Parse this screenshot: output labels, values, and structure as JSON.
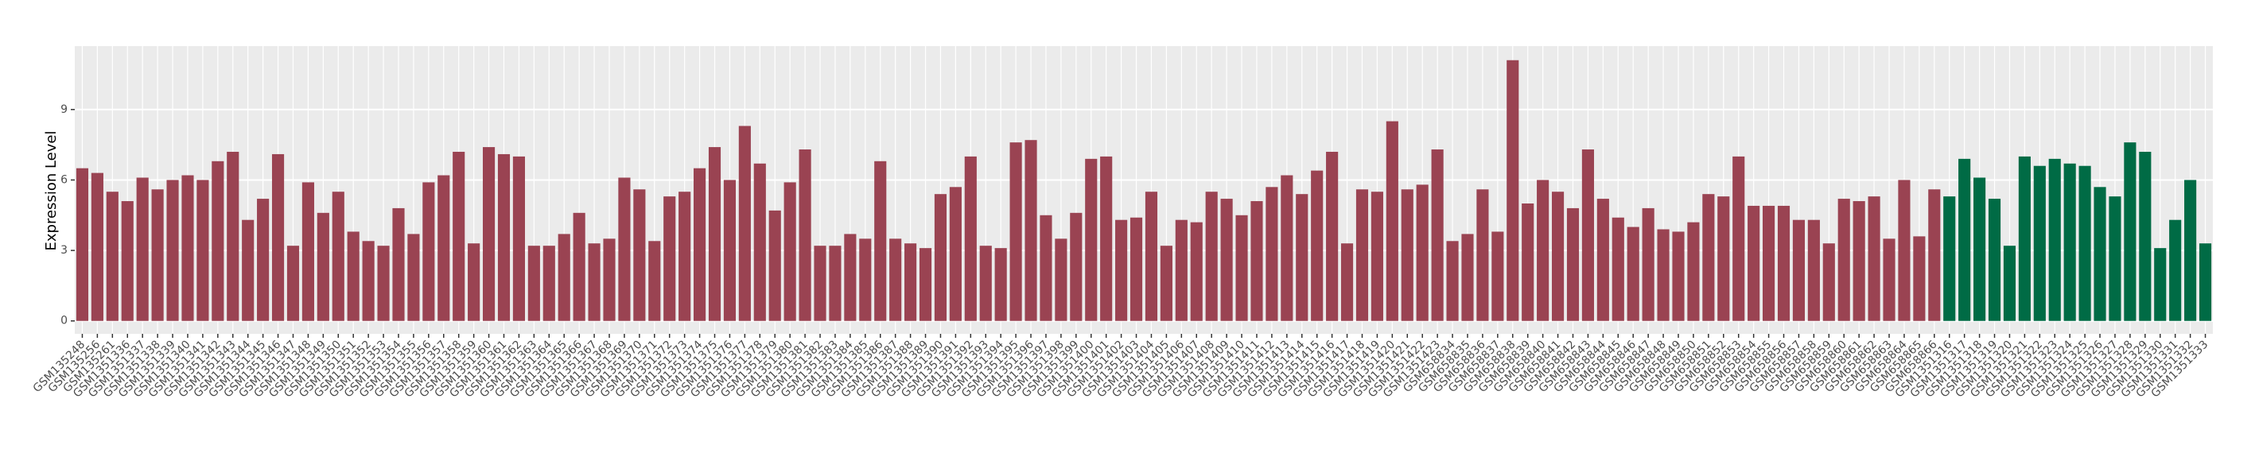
{
  "chart_data": {
    "type": "bar",
    "y_label": "Expression Level",
    "categories": [
      "GSM135248",
      "GSM135256",
      "GSM135261",
      "GSM1351336",
      "GSM1351337",
      "GSM1351338",
      "GSM1351339",
      "GSM1351340",
      "GSM1351341",
      "GSM1351342",
      "GSM1351343",
      "GSM1351344",
      "GSM1351345",
      "GSM1351346",
      "GSM1351347",
      "GSM1351348",
      "GSM1351349",
      "GSM1351350",
      "GSM1351351",
      "GSM1351352",
      "GSM1351353",
      "GSM1351354",
      "GSM1351355",
      "GSM1351356",
      "GSM1351357",
      "GSM1351358",
      "GSM1351359",
      "GSM1351360",
      "GSM1351361",
      "GSM1351362",
      "GSM1351363",
      "GSM1351364",
      "GSM1351365",
      "GSM1351366",
      "GSM1351367",
      "GSM1351368",
      "GSM1351369",
      "GSM1351370",
      "GSM1351371",
      "GSM1351372",
      "GSM1351373",
      "GSM1351374",
      "GSM1351375",
      "GSM1351376",
      "GSM1351377",
      "GSM1351378",
      "GSM1351379",
      "GSM1351380",
      "GSM1351381",
      "GSM1351382",
      "GSM1351383",
      "GSM1351384",
      "GSM1351385",
      "GSM1351386",
      "GSM1351387",
      "GSM1351388",
      "GSM1351389",
      "GSM1351390",
      "GSM1351391",
      "GSM1351392",
      "GSM1351393",
      "GSM1351394",
      "GSM1351395",
      "GSM1351396",
      "GSM1351397",
      "GSM1351398",
      "GSM1351399",
      "GSM1351400",
      "GSM1351401",
      "GSM1351402",
      "GSM1351403",
      "GSM1351404",
      "GSM1351405",
      "GSM1351406",
      "GSM1351407",
      "GSM1351408",
      "GSM1351409",
      "GSM1351410",
      "GSM1351411",
      "GSM1351412",
      "GSM1351413",
      "GSM1351414",
      "GSM1351415",
      "GSM1351416",
      "GSM1351417",
      "GSM1351418",
      "GSM1351419",
      "GSM1351420",
      "GSM1351421",
      "GSM1351422",
      "GSM1351423",
      "GSM658834",
      "GSM658835",
      "GSM658836",
      "GSM658837",
      "GSM658838",
      "GSM658839",
      "GSM658840",
      "GSM658841",
      "GSM658842",
      "GSM658843",
      "GSM658844",
      "GSM658845",
      "GSM658846",
      "GSM658847",
      "GSM658848",
      "GSM658849",
      "GSM658850",
      "GSM658851",
      "GSM658852",
      "GSM658853",
      "GSM658854",
      "GSM658855",
      "GSM658856",
      "GSM658857",
      "GSM658858",
      "GSM658859",
      "GSM658860",
      "GSM658861",
      "GSM658862",
      "GSM658863",
      "GSM658864",
      "GSM658865",
      "GSM658866",
      "GSM1351316",
      "GSM1351317",
      "GSM1351318",
      "GSM1351319",
      "GSM1351320",
      "GSM1351321",
      "GSM1351322",
      "GSM1351323",
      "GSM1351324",
      "GSM1351325",
      "GSM1351326",
      "GSM1351327",
      "GSM1351328",
      "GSM1351329",
      "GSM1351330",
      "GSM1351331",
      "GSM1351332",
      "GSM1351333"
    ],
    "series": [
      {
        "color": "#9a4352",
        "values": [
          6.5,
          6.3,
          5.5,
          5.1,
          6.1,
          5.6,
          6.0,
          6.2,
          6.0,
          6.8,
          7.2,
          4.3,
          5.2,
          7.1,
          3.2,
          5.9,
          4.6,
          5.5,
          3.8,
          3.4,
          3.2,
          4.8,
          3.7,
          5.9,
          6.2,
          7.2,
          3.3,
          7.4,
          7.1,
          7.0,
          3.2,
          3.2,
          3.7,
          4.6,
          3.3,
          3.5,
          6.1,
          5.6,
          3.4,
          5.3,
          5.5,
          6.5,
          7.4,
          6.0,
          8.3,
          6.7,
          4.7,
          5.9,
          7.3,
          3.2,
          3.2,
          3.7,
          3.5,
          6.8,
          3.5,
          3.3,
          3.1,
          5.4,
          5.7,
          7.0,
          3.2,
          3.1,
          7.6,
          7.7,
          4.5,
          3.5,
          4.6,
          6.9,
          7.0,
          4.3,
          4.4,
          5.5,
          3.2,
          4.3,
          4.2,
          5.5,
          5.2,
          4.5,
          5.1,
          5.7,
          6.2,
          5.4,
          6.4,
          7.2,
          3.3,
          5.6,
          5.5,
          8.5,
          5.6,
          5.8,
          7.3,
          3.4,
          3.7,
          5.6,
          3.8,
          11.1,
          5.0,
          6.0,
          5.5,
          4.8,
          7.3,
          5.2,
          4.4,
          4.0,
          4.8,
          3.9,
          3.8,
          4.2,
          5.4,
          5.3,
          7.0,
          4.9,
          4.9,
          4.9,
          4.3,
          4.3,
          3.3,
          5.2,
          5.1,
          5.3,
          3.5,
          6.0,
          3.6,
          5.6,
          null,
          null,
          null,
          null,
          null,
          null,
          null,
          null,
          null,
          null,
          null,
          null,
          null,
          null,
          null,
          null,
          null,
          null
        ]
      },
      {
        "color": "#006b45",
        "values": [
          null,
          null,
          null,
          null,
          null,
          null,
          null,
          null,
          null,
          null,
          null,
          null,
          null,
          null,
          null,
          null,
          null,
          null,
          null,
          null,
          null,
          null,
          null,
          null,
          null,
          null,
          null,
          null,
          null,
          null,
          null,
          null,
          null,
          null,
          null,
          null,
          null,
          null,
          null,
          null,
          null,
          null,
          null,
          null,
          null,
          null,
          null,
          null,
          null,
          null,
          null,
          null,
          null,
          null,
          null,
          null,
          null,
          null,
          null,
          null,
          null,
          null,
          null,
          null,
          null,
          null,
          null,
          null,
          null,
          null,
          null,
          null,
          null,
          null,
          null,
          null,
          null,
          null,
          null,
          null,
          null,
          null,
          null,
          null,
          null,
          null,
          null,
          null,
          null,
          null,
          null,
          null,
          null,
          null,
          null,
          null,
          null,
          null,
          null,
          null,
          null,
          null,
          null,
          null,
          null,
          null,
          null,
          null,
          null,
          null,
          null,
          null,
          null,
          null,
          null,
          null,
          null,
          null,
          null,
          null,
          null,
          null,
          null,
          null,
          5.3,
          6.9,
          6.1,
          5.2,
          3.2,
          7.0,
          6.6,
          6.9,
          6.7,
          6.6,
          5.7,
          5.3,
          7.6,
          7.2,
          3.1,
          4.3,
          6.0,
          3.3
        ]
      }
    ],
    "ylim": [
      -0.55,
      11.7
    ],
    "yticks": [
      0,
      3,
      6,
      9
    ],
    "grid": true
  }
}
